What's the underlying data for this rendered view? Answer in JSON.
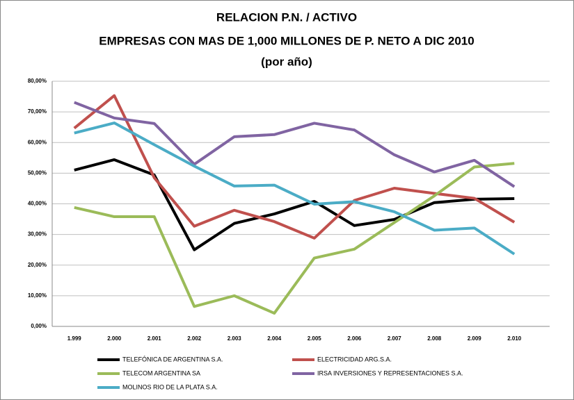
{
  "chart_data": {
    "type": "line",
    "title": [
      "RELACION P.N. / ACTIVO",
      "EMPRESAS CON MAS DE 1,000 MILLONES DE P. NETO A DIC 2010",
      "(por año)"
    ],
    "categories": [
      "1.999",
      "2.000",
      "2.001",
      "2.002",
      "2.003",
      "2.004",
      "2.005",
      "2.006",
      "2.007",
      "2.008",
      "2.009",
      "2.010"
    ],
    "series": [
      {
        "name": "TELEFÓNICA DE ARGENTINA S.A.",
        "color": "#000000",
        "values": [
          51.0,
          54.4,
          49.4,
          25.0,
          33.6,
          36.7,
          40.8,
          32.9,
          34.9,
          40.4,
          41.5,
          41.7
        ]
      },
      {
        "name": "ELECTRICIDAD ARG.S.A.",
        "color": "#c0504d",
        "values": [
          64.7,
          75.3,
          48.5,
          32.7,
          37.9,
          34.2,
          28.8,
          41.1,
          45.1,
          43.4,
          41.8,
          34.0
        ]
      },
      {
        "name": "TELECOM ARGENTINA SA",
        "color": "#9bbb59",
        "values": [
          38.8,
          35.8,
          35.8,
          6.5,
          10.0,
          4.3,
          22.3,
          25.2,
          33.9,
          42.6,
          52.0,
          53.2
        ]
      },
      {
        "name": "IRSA INVERSIONES Y REPRESENTACIONES S.A.",
        "color": "#8064a2",
        "values": [
          73.1,
          68.0,
          66.2,
          52.9,
          61.9,
          62.6,
          66.3,
          64.1,
          56.0,
          50.4,
          54.2,
          45.6
        ]
      },
      {
        "name": "MOLINOS RIO DE LA PLATA S.A.",
        "color": "#4bacc6",
        "values": [
          63.1,
          66.4,
          59.3,
          52.3,
          45.8,
          46.1,
          39.9,
          40.7,
          37.4,
          31.4,
          32.1,
          23.6
        ]
      }
    ],
    "ylim": [
      0,
      80
    ],
    "yticks": [
      {
        "value": 0,
        "label": "0,00%"
      },
      {
        "value": 10,
        "label": "10,00%"
      },
      {
        "value": 20,
        "label": "20,00%"
      },
      {
        "value": 30,
        "label": "30,00%"
      },
      {
        "value": 40,
        "label": "40,00%"
      },
      {
        "value": 50,
        "label": "50,00%"
      },
      {
        "value": 60,
        "label": "60,00%"
      },
      {
        "value": 70,
        "label": "70,00%"
      },
      {
        "value": 80,
        "label": "80,00%"
      }
    ],
    "grid": true
  }
}
